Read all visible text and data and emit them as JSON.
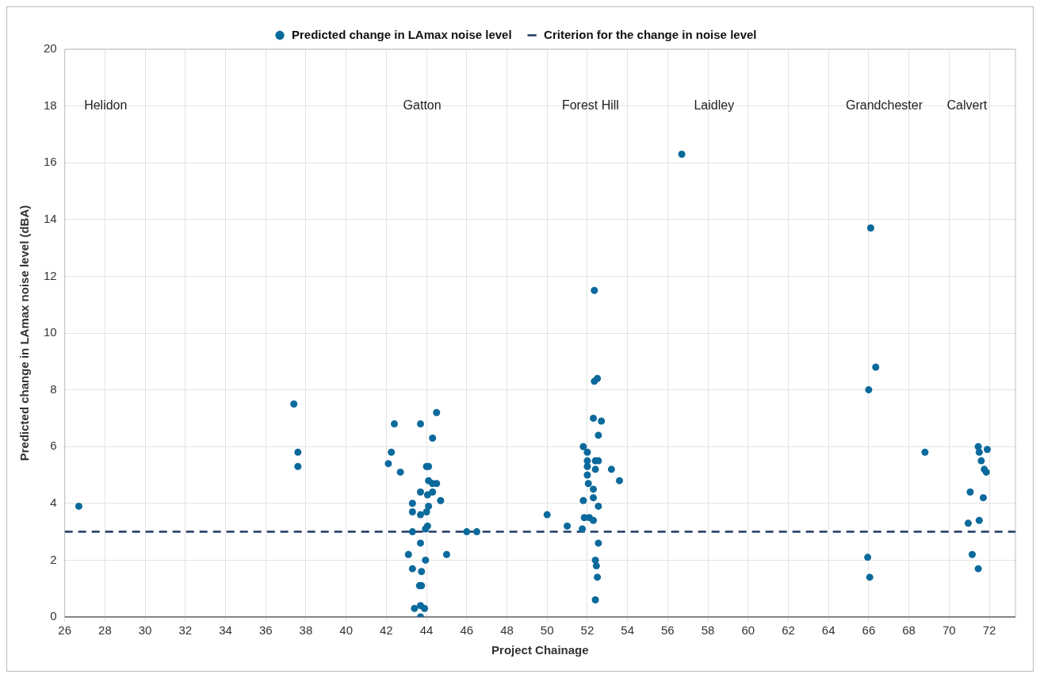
{
  "chart_data": {
    "type": "scatter",
    "xlabel": "Project Chainage",
    "ylabel": "Predicted change in LAmax noise level (dBA)",
    "xlim": [
      26,
      73.3
    ],
    "xticks": [
      26,
      28,
      30,
      32,
      34,
      36,
      38,
      40,
      42,
      44,
      46,
      48,
      50,
      52,
      54,
      56,
      58,
      60,
      62,
      64,
      66,
      68,
      70,
      72
    ],
    "ylim": [
      0,
      20
    ],
    "yticks": [
      0,
      2,
      4,
      6,
      8,
      10,
      12,
      14,
      16,
      18,
      20
    ],
    "grid": true,
    "legend": "top",
    "series": [
      {
        "name": "Predicted change in LAmax noise level",
        "type": "scatter",
        "color": "#0b6a9c",
        "marker": "circle",
        "x": [
          26.7,
          37.4,
          37.6,
          37.6,
          44.5,
          42.4,
          43.7,
          44.3,
          42.25,
          42.1,
          42.7,
          44.0,
          44.1,
          44.1,
          44.3,
          44.5,
          43.7,
          44.05,
          44.3,
          44.7,
          43.3,
          44.1,
          43.3,
          44.0,
          43.7,
          44.05,
          43.95,
          43.3,
          46.0,
          46.5,
          43.7,
          43.1,
          45.0,
          43.95,
          43.3,
          43.75,
          43.65,
          43.75,
          43.4,
          43.7,
          43.9,
          43.7,
          52.35,
          52.35,
          52.5,
          52.3,
          52.7,
          52.55,
          51.8,
          52.0,
          52.0,
          52.4,
          52.55,
          52.0,
          52.4,
          53.2,
          52.0,
          53.6,
          52.05,
          52.3,
          52.3,
          51.8,
          52.55,
          50.0,
          51.85,
          52.1,
          52.3,
          51.0,
          51.75,
          52.55,
          52.4,
          52.45,
          52.5,
          52.4,
          56.7,
          66.1,
          66.35,
          66.0,
          65.95,
          66.05,
          68.8,
          71.45,
          71.9,
          71.5,
          71.6,
          71.75,
          71.85,
          71.05,
          71.7,
          71.5,
          70.95,
          71.15,
          71.45
        ],
        "values": [
          3.9,
          7.5,
          5.8,
          5.3,
          7.2,
          6.8,
          6.8,
          6.3,
          5.8,
          5.4,
          5.1,
          5.3,
          5.3,
          4.8,
          4.7,
          4.7,
          4.4,
          4.3,
          4.4,
          4.1,
          4.0,
          3.9,
          3.7,
          3.7,
          3.6,
          3.2,
          3.1,
          3.0,
          3.0,
          3.0,
          2.6,
          2.2,
          2.2,
          2.0,
          1.7,
          1.6,
          1.1,
          1.1,
          0.3,
          0.4,
          0.3,
          0.0,
          11.5,
          8.3,
          8.4,
          7.0,
          6.9,
          6.4,
          6.0,
          5.8,
          5.5,
          5.5,
          5.5,
          5.3,
          5.2,
          5.2,
          5.0,
          4.8,
          4.7,
          4.5,
          4.2,
          4.1,
          3.9,
          3.6,
          3.5,
          3.5,
          3.4,
          3.2,
          3.1,
          2.6,
          2.0,
          1.8,
          1.4,
          0.6,
          16.3,
          13.7,
          8.8,
          8.0,
          2.1,
          1.4,
          5.8,
          6.0,
          5.9,
          5.8,
          5.5,
          5.2,
          5.1,
          4.4,
          4.2,
          3.4,
          3.3,
          2.2,
          1.7
        ]
      },
      {
        "name": "Criterion for the change in noise level",
        "type": "line",
        "color": "#1f3864",
        "line_style": "dashed",
        "marker": "none",
        "x": [
          26,
          73.3
        ],
        "values": [
          3,
          3
        ]
      }
    ],
    "annotations": [
      "Helidon",
      "Gatton",
      "Forest Hill",
      "Laidley",
      "Grandchester",
      "Calvert"
    ]
  }
}
